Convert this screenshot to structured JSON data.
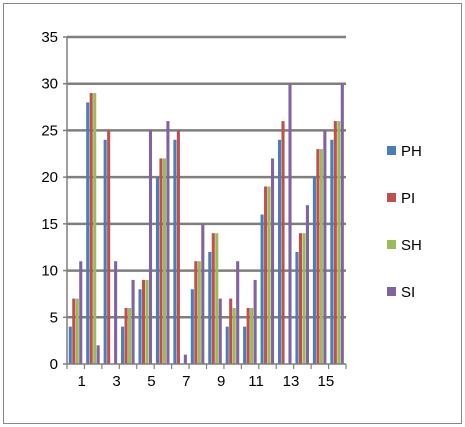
{
  "chart_data": {
    "type": "bar",
    "x_ticks": [
      "1",
      "3",
      "5",
      "7",
      "9",
      "11",
      "13",
      "15"
    ],
    "categories": [
      "1",
      "2",
      "3",
      "4",
      "5",
      "6",
      "7",
      "8",
      "9",
      "10",
      "11",
      "12",
      "13",
      "14",
      "15",
      "16"
    ],
    "y_ticks": [
      "0",
      "5",
      "10",
      "15",
      "20",
      "25",
      "30",
      "35"
    ],
    "ylim": [
      0,
      35
    ],
    "grid": true,
    "legend_position": "right",
    "series": [
      {
        "name": "PH",
        "color": "#4a7ebb",
        "values": [
          4,
          28,
          24,
          4,
          8,
          20,
          24,
          8,
          12,
          4,
          4,
          16,
          24,
          12,
          20,
          24
        ]
      },
      {
        "name": "PI",
        "color": "#c0504d",
        "values": [
          7,
          29,
          25,
          6,
          9,
          22,
          25,
          11,
          14,
          7,
          6,
          19,
          26,
          14,
          23,
          26
        ]
      },
      {
        "name": "SH",
        "color": "#9bbb59",
        "values": [
          7,
          29,
          0,
          6,
          9,
          22,
          0,
          11,
          14,
          6,
          6,
          19,
          0,
          14,
          23,
          26
        ]
      },
      {
        "name": "SI",
        "color": "#8064a2",
        "values": [
          11,
          2,
          11,
          9,
          25,
          26,
          1,
          15,
          7,
          11,
          9,
          22,
          30,
          17,
          25,
          30
        ]
      }
    ]
  }
}
